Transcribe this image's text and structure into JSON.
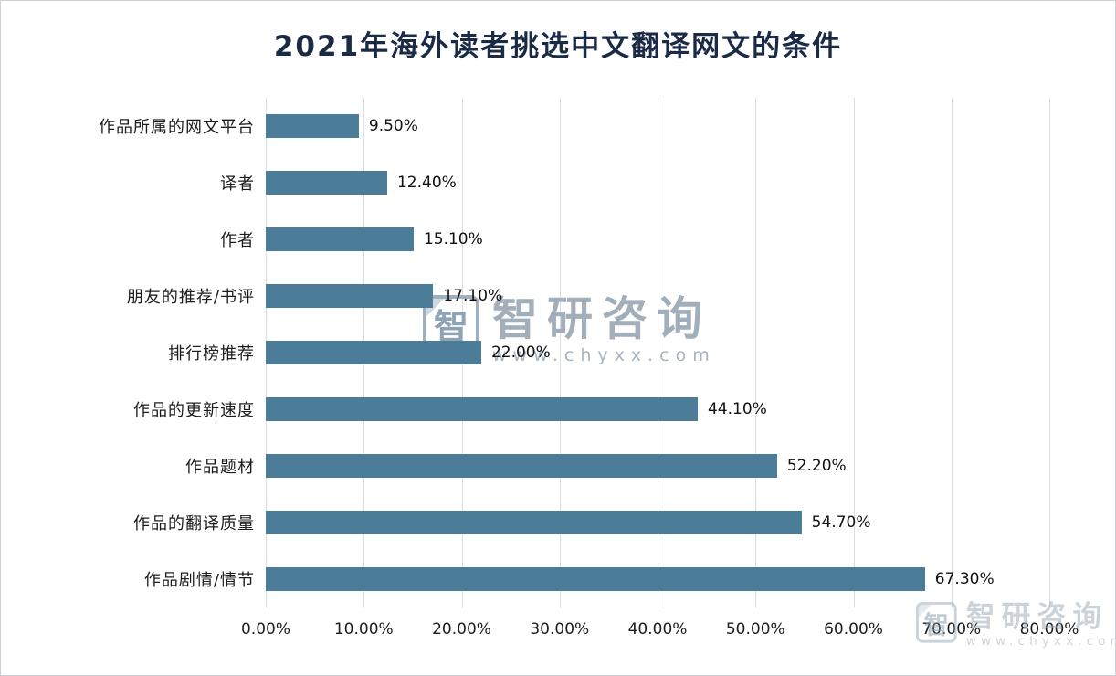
{
  "title": "2021年海外读者挑选中文翻译网文的条件",
  "watermark": {
    "logo_char": "智",
    "brand": "智研咨询",
    "url": "www.chyxx.com"
  },
  "chart_data": {
    "type": "bar",
    "orientation": "horizontal",
    "title": "2021年海外读者挑选中文翻译网文的条件",
    "categories": [
      "作品所属的网文平台",
      "译者",
      "作者",
      "朋友的推荐/书评",
      "排行榜推荐",
      "作品的更新速度",
      "作品题材",
      "作品的翻译质量",
      "作品剧情/情节"
    ],
    "values": [
      9.5,
      12.4,
      15.1,
      17.1,
      22.0,
      44.1,
      52.2,
      54.7,
      67.3
    ],
    "value_labels": [
      "9.50%",
      "12.40%",
      "15.10%",
      "17.10%",
      "22.00%",
      "44.10%",
      "52.20%",
      "54.70%",
      "67.30%"
    ],
    "xlabel": "",
    "ylabel": "",
    "xlim": [
      0,
      80
    ],
    "x_ticks": [
      "0.00%",
      "10.00%",
      "20.00%",
      "30.00%",
      "40.00%",
      "50.00%",
      "60.00%",
      "70.00%",
      "80.00%"
    ],
    "grid": true,
    "legend": "none",
    "bar_color": "#4b7d98",
    "gridline_color": "#d9dde1"
  }
}
